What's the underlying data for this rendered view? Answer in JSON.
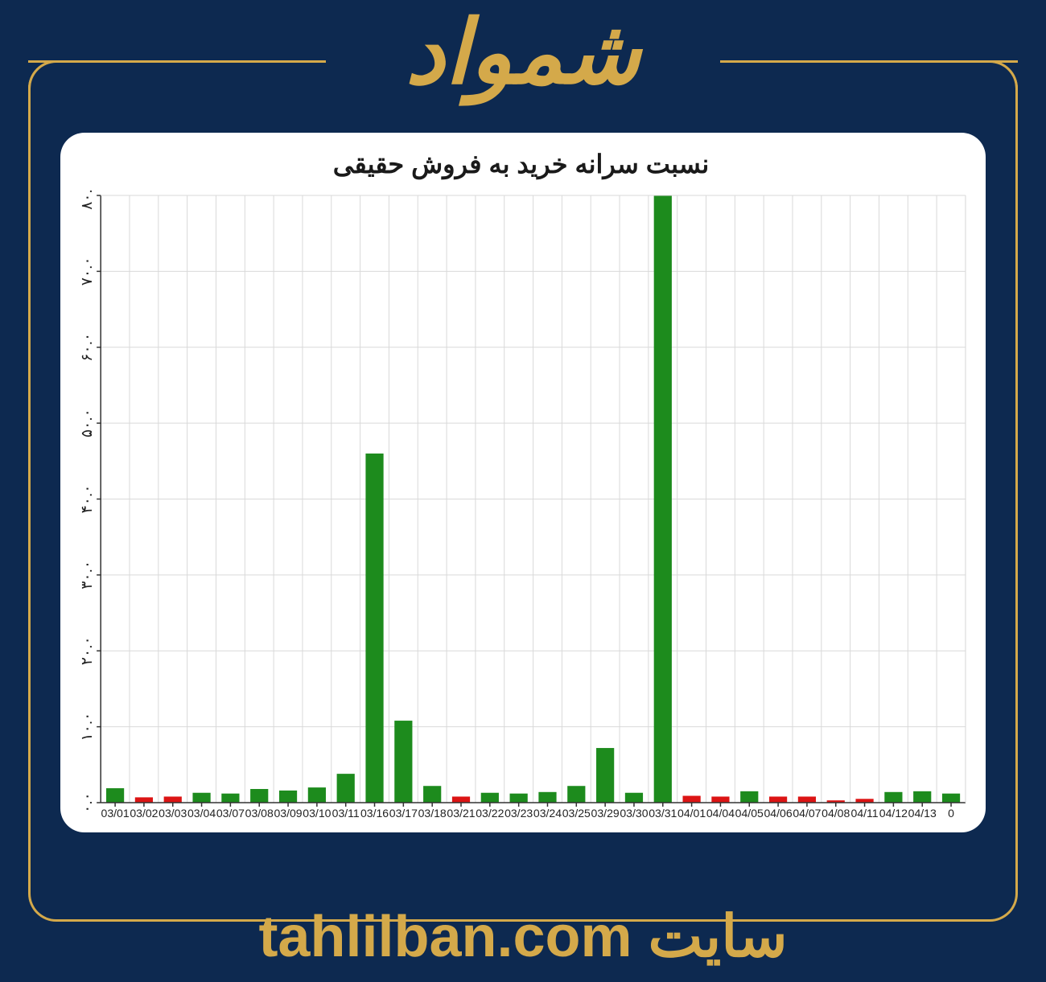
{
  "header": {
    "title": "شمواد"
  },
  "footer": {
    "prefix": "سایت",
    "url": "tahlilban.com"
  },
  "chart": {
    "type": "bar",
    "title": "نسبت سرانه خرید به فروش حقیقی",
    "ylim": [
      0,
      80
    ],
    "ytick_step": 10,
    "yticks": [
      "۰.۰",
      "۱۰.۰",
      "۲۰.۰",
      "۳۰.۰",
      "۴۰.۰",
      "۵۰.۰",
      "۶۰.۰",
      "۷۰.۰",
      "۸۰.۰"
    ],
    "green": "#1d8b1d",
    "red": "#dc1414",
    "grid_color": "#d9d9d9",
    "axis_color": "#333333",
    "background": "#ffffff",
    "bar_width": 0.62,
    "data": [
      {
        "label": "03/01",
        "value": 1.9,
        "color": "green"
      },
      {
        "label": "03/02",
        "value": 0.7,
        "color": "red"
      },
      {
        "label": "03/03",
        "value": 0.8,
        "color": "red"
      },
      {
        "label": "03/04",
        "value": 1.3,
        "color": "green"
      },
      {
        "label": "03/07",
        "value": 1.2,
        "color": "green"
      },
      {
        "label": "03/08",
        "value": 1.8,
        "color": "green"
      },
      {
        "label": "03/09",
        "value": 1.6,
        "color": "green"
      },
      {
        "label": "03/10",
        "value": 2.0,
        "color": "green"
      },
      {
        "label": "03/11",
        "value": 3.8,
        "color": "green"
      },
      {
        "label": "03/16",
        "value": 46.0,
        "color": "green"
      },
      {
        "label": "03/17",
        "value": 10.8,
        "color": "green"
      },
      {
        "label": "03/18",
        "value": 2.2,
        "color": "green"
      },
      {
        "label": "03/21",
        "value": 0.8,
        "color": "red"
      },
      {
        "label": "03/22",
        "value": 1.3,
        "color": "green"
      },
      {
        "label": "03/23",
        "value": 1.2,
        "color": "green"
      },
      {
        "label": "03/24",
        "value": 1.4,
        "color": "green"
      },
      {
        "label": "03/25",
        "value": 2.2,
        "color": "green"
      },
      {
        "label": "03/29",
        "value": 7.2,
        "color": "green"
      },
      {
        "label": "03/30",
        "value": 1.3,
        "color": "green"
      },
      {
        "label": "03/31",
        "value": 80.0,
        "color": "green"
      },
      {
        "label": "04/01",
        "value": 0.9,
        "color": "red"
      },
      {
        "label": "04/04",
        "value": 0.8,
        "color": "red"
      },
      {
        "label": "04/05",
        "value": 1.5,
        "color": "green"
      },
      {
        "label": "04/06",
        "value": 0.8,
        "color": "red"
      },
      {
        "label": "04/07",
        "value": 0.8,
        "color": "red"
      },
      {
        "label": "04/08",
        "value": 0.3,
        "color": "red"
      },
      {
        "label": "04/11",
        "value": 0.5,
        "color": "red"
      },
      {
        "label": "04/12",
        "value": 1.4,
        "color": "green"
      },
      {
        "label": "04/13",
        "value": 1.5,
        "color": "green"
      },
      {
        "label": "0",
        "value": 1.2,
        "color": "green"
      }
    ]
  }
}
